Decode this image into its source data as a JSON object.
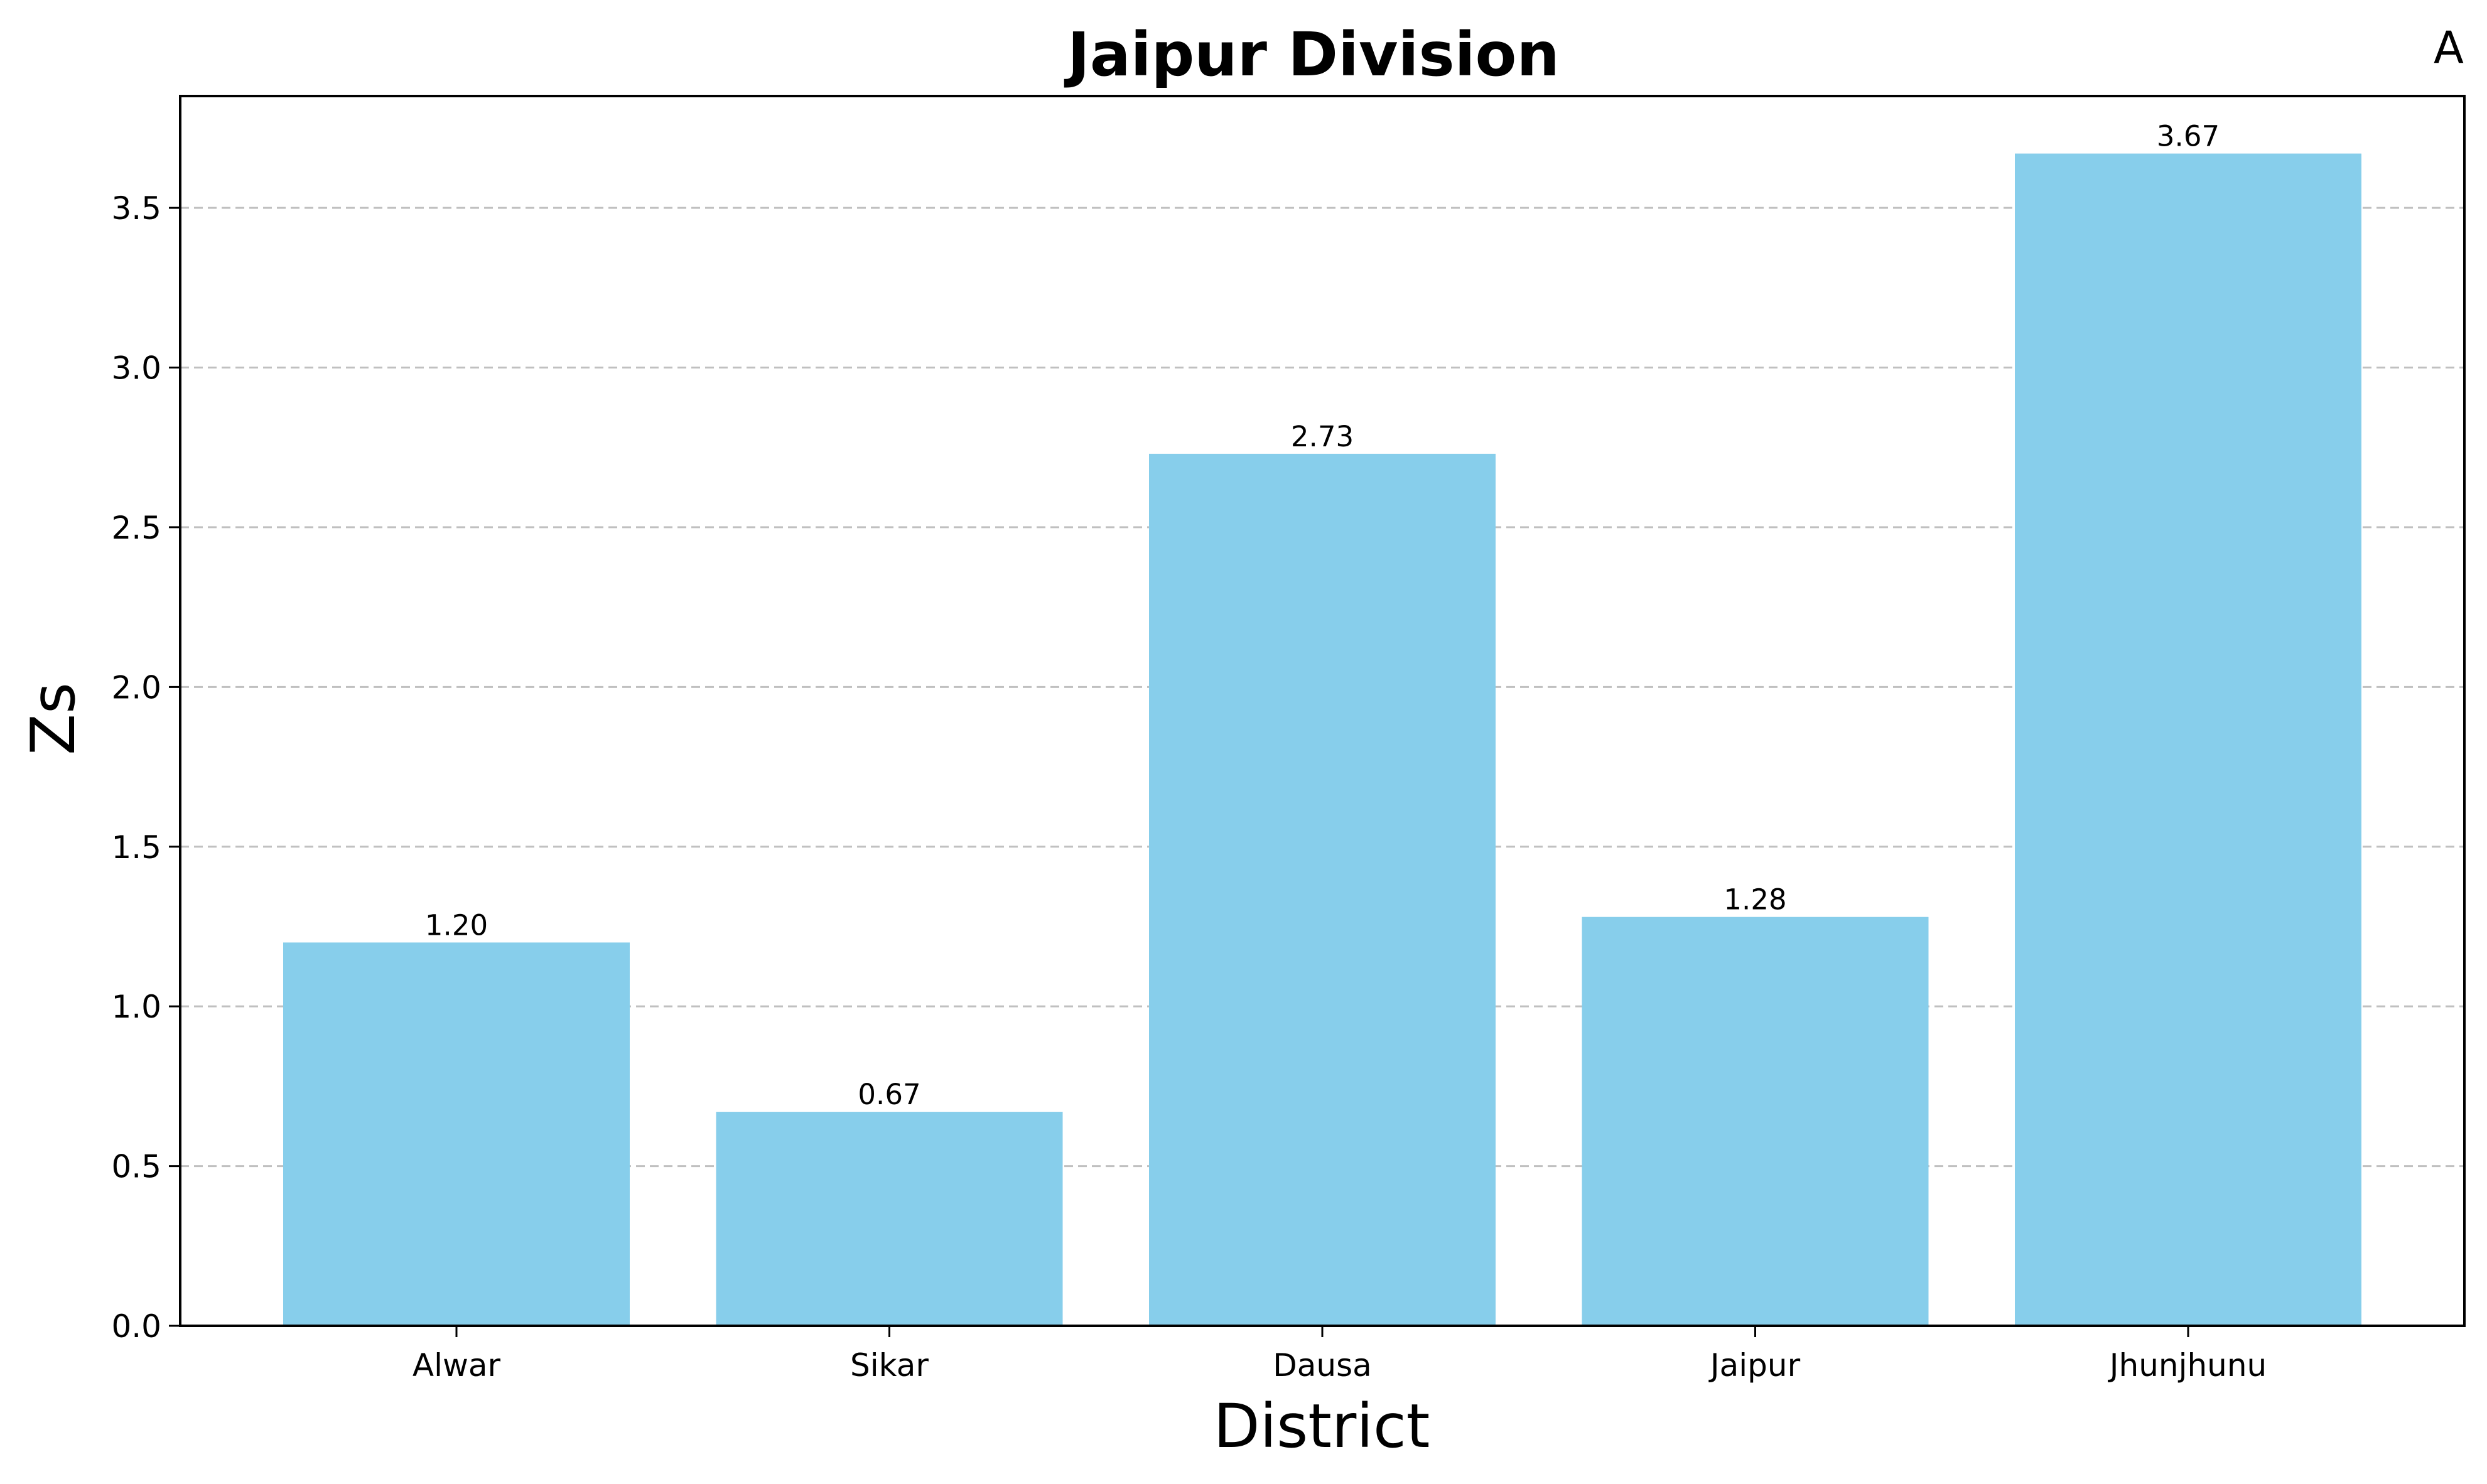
{
  "chart_data": {
    "type": "bar",
    "title": "Jaipur Division",
    "panel_label": "A",
    "xlabel": "District",
    "ylabel": "Zs",
    "categories": [
      "Alwar",
      "Sikar",
      "Dausa",
      "Jaipur",
      "Jhunjhunu"
    ],
    "values": [
      1.2,
      0.67,
      2.73,
      1.28,
      3.67
    ],
    "value_labels": [
      "1.20",
      "0.67",
      "2.73",
      "1.28",
      "3.67"
    ],
    "ylim": [
      0,
      3.85
    ],
    "yticks": [
      0.0,
      0.5,
      1.0,
      1.5,
      2.0,
      2.5,
      3.0,
      3.5
    ],
    "ytick_labels": [
      "0.0",
      "0.5",
      "1.0",
      "1.5",
      "2.0",
      "2.5",
      "3.0",
      "3.5"
    ],
    "grid": "y-dashed",
    "colors": {
      "bar": "#87CEEB",
      "grid": "#c0c0c0",
      "axis": "#000000"
    }
  }
}
